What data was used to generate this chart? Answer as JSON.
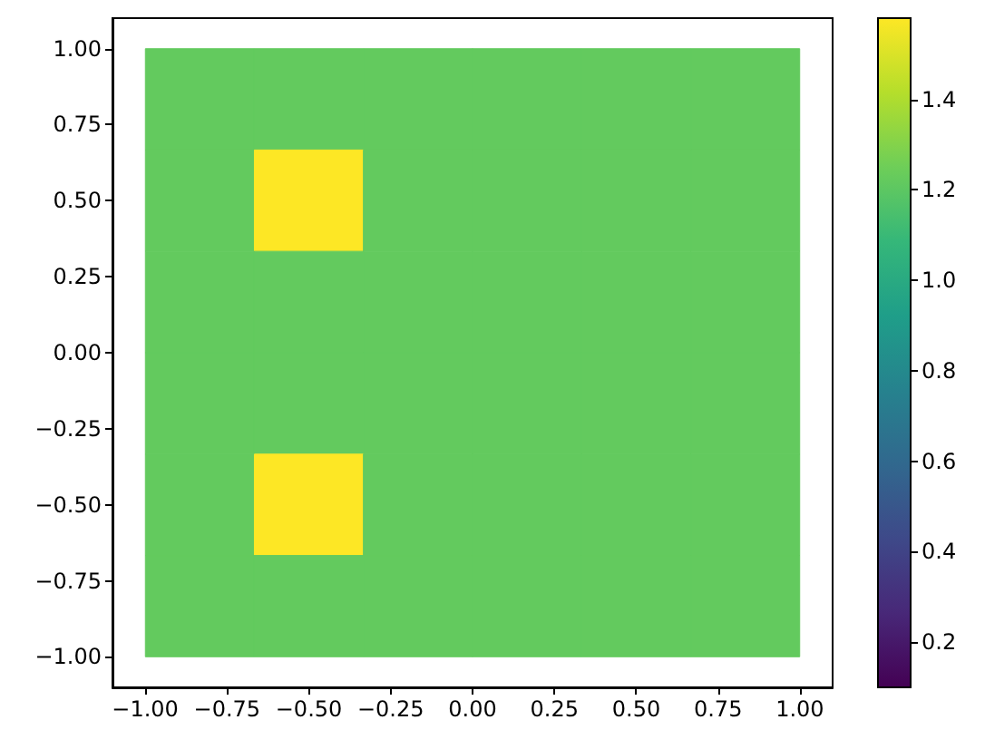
{
  "chart_data": {
    "type": "heatmap",
    "x": [
      -0.833,
      -0.5,
      -0.167,
      0.167,
      0.5,
      0.833
    ],
    "y": [
      0.833,
      0.5,
      0.167,
      -0.167,
      -0.5,
      -0.833
    ],
    "cells": [
      [
        1.22,
        1.22,
        1.22,
        1.22,
        1.22,
        1.22
      ],
      [
        1.22,
        1.58,
        1.22,
        1.22,
        1.22,
        1.22
      ],
      [
        1.22,
        1.22,
        1.22,
        1.22,
        1.22,
        1.22
      ],
      [
        1.22,
        1.22,
        1.22,
        1.22,
        1.22,
        1.22
      ],
      [
        1.22,
        1.58,
        1.22,
        1.22,
        1.22,
        1.22
      ],
      [
        1.22,
        1.22,
        1.22,
        1.22,
        1.22,
        1.22
      ]
    ],
    "xlim": [
      -1.1,
      1.1
    ],
    "ylim": [
      -1.1,
      1.1
    ],
    "xticks": [
      {
        "value": -1,
        "label": "−1.00"
      },
      {
        "value": -0.75,
        "label": "−0.75"
      },
      {
        "value": -0.5,
        "label": "−0.50"
      },
      {
        "value": -0.25,
        "label": "−0.25"
      },
      {
        "value": 0,
        "label": "0.00"
      },
      {
        "value": 0.25,
        "label": "0.25"
      },
      {
        "value": 0.5,
        "label": "0.50"
      },
      {
        "value": 0.75,
        "label": "0.75"
      },
      {
        "value": 1,
        "label": "1.00"
      }
    ],
    "yticks": [
      {
        "value": -1,
        "label": "−1.00"
      },
      {
        "value": -0.75,
        "label": "−0.75"
      },
      {
        "value": -0.5,
        "label": "−0.50"
      },
      {
        "value": -0.25,
        "label": "−0.25"
      },
      {
        "value": 0,
        "label": "0.00"
      },
      {
        "value": 0.25,
        "label": "0.25"
      },
      {
        "value": 0.5,
        "label": "0.50"
      },
      {
        "value": 0.75,
        "label": "0.75"
      },
      {
        "value": 1,
        "label": "1.00"
      }
    ],
    "clim": [
      0.1,
      1.58
    ],
    "cticks": [
      0.2,
      0.4,
      0.6,
      0.8,
      {
        "value": 1,
        "label": "1.0"
      },
      1.2,
      1.4
    ]
  }
}
